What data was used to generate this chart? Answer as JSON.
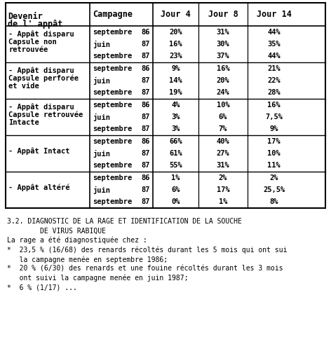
{
  "rows": [
    {
      "label": "- Appât disparu\nCapsule non\nretrouvée",
      "campaigns": [
        [
          "septembre",
          "86"
        ],
        [
          "juin",
          "87"
        ],
        [
          "septembre",
          "87"
        ]
      ],
      "j4": [
        "20%",
        "16%",
        "23%"
      ],
      "j8": [
        "31%",
        "30%",
        "37%"
      ],
      "j14": [
        "44%",
        "35%",
        "44%"
      ]
    },
    {
      "label": "- Appât disparu\nCapsule perforée\net vide",
      "campaigns": [
        [
          "septembre",
          "86"
        ],
        [
          "juin",
          "87"
        ],
        [
          "septembre",
          "87"
        ]
      ],
      "j4": [
        "9%",
        "14%",
        "19%"
      ],
      "j8": [
        "16%",
        "20%",
        "24%"
      ],
      "j14": [
        "21%",
        "22%",
        "28%"
      ]
    },
    {
      "label": "- Appât disparu\nCapsule retrouvée\nIntacte",
      "campaigns": [
        [
          "septembre",
          "86"
        ],
        [
          "juin",
          "87"
        ],
        [
          "septembre",
          "87"
        ]
      ],
      "j4": [
        "4%",
        "3%",
        "3%"
      ],
      "j8": [
        "10%",
        "6%",
        "7%"
      ],
      "j14": [
        "16%",
        "7,5%",
        "9%"
      ]
    },
    {
      "label": "- Appât Intact",
      "campaigns": [
        [
          "septembre",
          "86"
        ],
        [
          "juin",
          "87"
        ],
        [
          "septembre",
          "87"
        ]
      ],
      "j4": [
        "66%",
        "61%",
        "55%"
      ],
      "j8": [
        "40%",
        "27%",
        "31%"
      ],
      "j14": [
        "17%",
        "10%",
        "11%"
      ]
    },
    {
      "label": "- Appât altéré",
      "campaigns": [
        [
          "septembre",
          "86"
        ],
        [
          "juin",
          "87"
        ],
        [
          "septembre",
          "87"
        ]
      ],
      "j4": [
        "1%",
        "6%",
        "0%"
      ],
      "j8": [
        "2%",
        "17%",
        "1%"
      ],
      "j14": [
        "2%",
        "25,5%",
        "8%"
      ]
    }
  ],
  "text_below": [
    "3.2. DIAGNOSTIC DE LA RAGE ET IDENTIFICATION DE LA SOUCHE",
    "        DE VIRUS RABIQUE",
    "La rage a été diagnostiquée chez :",
    "*  23,5 % (16/68) des renards récoltés durant les 5 mois qui ont sui",
    "   la campagne menée en septembre 1986;",
    "*  20 % (6/30) des renards et une fouine récoltés durant les 3 mois",
    "   ont suivi la campagne menée en juin 1987;",
    "*  6 % (1/17) ..."
  ],
  "font_size": 7.5,
  "header_font_size": 8.5
}
